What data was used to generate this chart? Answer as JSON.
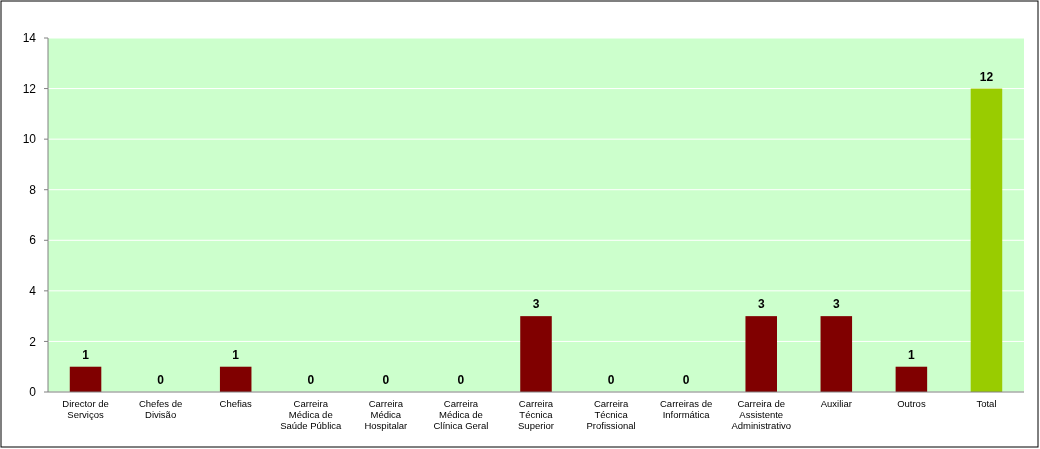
{
  "chart_data": {
    "type": "bar",
    "categories": [
      "Director de Serviços",
      "Chefes de Divisão",
      "Chefias",
      "Carreira Médica de Saúde Pública",
      "Carreira Médica Hospitalar",
      "Carreira Médica de Clínica Geral",
      "Carreira Técnica Superior",
      "Carreira Técnica Profissional",
      "Carreiras de Informática",
      "Carreira de Assistente Administrativo",
      "Auxiliar",
      "Outros",
      "Total"
    ],
    "values": [
      1,
      0,
      1,
      0,
      0,
      0,
      3,
      0,
      0,
      3,
      3,
      1,
      12
    ],
    "colors": [
      "#800000",
      "#800000",
      "#800000",
      "#800000",
      "#800000",
      "#800000",
      "#800000",
      "#800000",
      "#800000",
      "#800000",
      "#800000",
      "#800000",
      "#99cc00"
    ],
    "ylim": [
      0,
      14
    ],
    "yticks": [
      0,
      2,
      4,
      6,
      8,
      10,
      12,
      14
    ],
    "grid": "y",
    "data_labels": true
  }
}
